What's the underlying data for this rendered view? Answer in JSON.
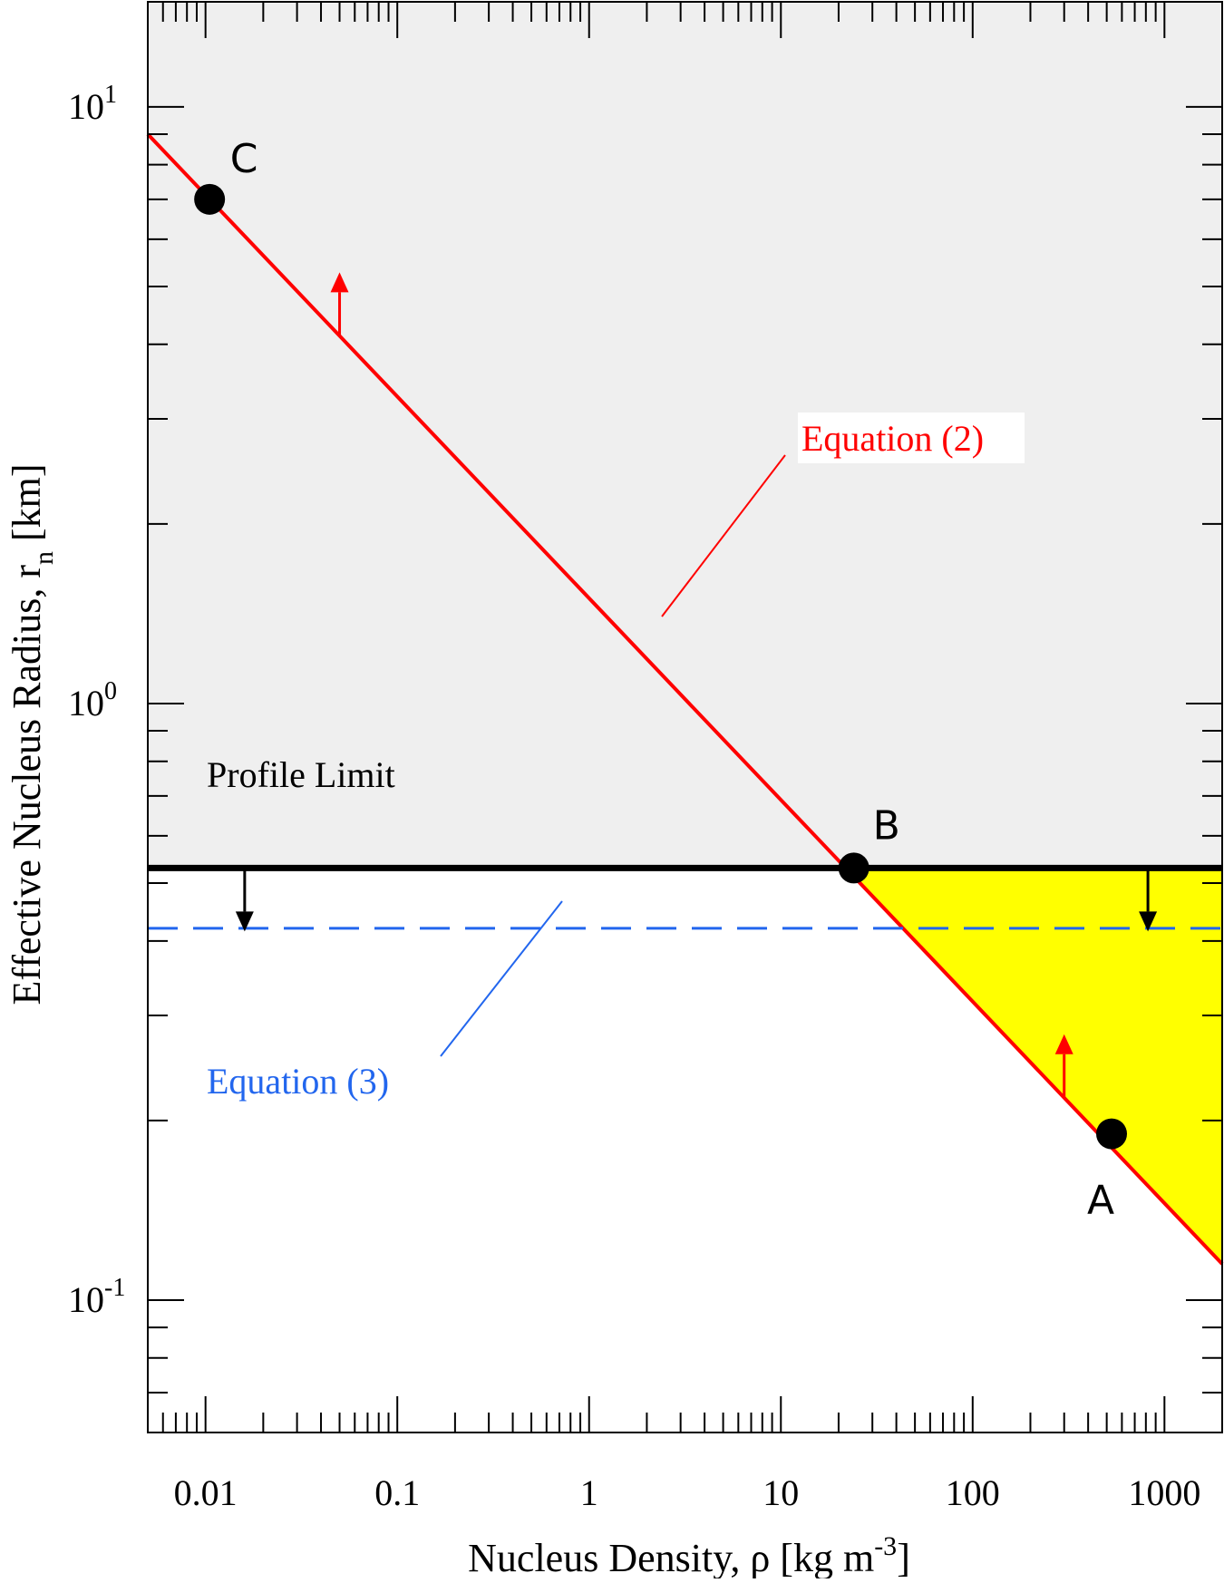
{
  "chart_data": {
    "type": "line",
    "x_scale": "log",
    "y_scale": "log",
    "xlim": [
      0.005,
      2000
    ],
    "ylim": [
      0.06,
      15
    ],
    "xlabel": "Nucleus Density, ρ [kg m",
    "xlabel_sup": "-3",
    "xlabel_end": "]",
    "ylabel": "Effective Nucleus Radius, r",
    "ylabel_sub": "n",
    "ylabel_end": " [km]",
    "x_ticks": [
      {
        "value": 0.01,
        "label": "0.01"
      },
      {
        "value": 0.1,
        "label": "0.1"
      },
      {
        "value": 1,
        "label": "1"
      },
      {
        "value": 10,
        "label": "10"
      },
      {
        "value": 100,
        "label": "100"
      },
      {
        "value": 1000,
        "label": "1000"
      }
    ],
    "y_ticks": [
      {
        "value": 0.1,
        "base": "10",
        "exp": "-1"
      },
      {
        "value": 1,
        "base": "10",
        "exp": "0"
      },
      {
        "value": 10,
        "base": "10",
        "exp": "1"
      }
    ],
    "series": [
      {
        "name": "Equation (2)",
        "color": "#ff0000",
        "style": "solid",
        "x": [
          0.005,
          2000
        ],
        "y": [
          9.0,
          0.115
        ]
      },
      {
        "name": "Profile Limit",
        "color": "#000000",
        "style": "solid-thick",
        "x": [
          0.005,
          2000
        ],
        "y": [
          0.53,
          0.53
        ]
      },
      {
        "name": "Equation (3)",
        "color": "#2266ee",
        "style": "dashed",
        "x": [
          0.005,
          2000
        ],
        "y": [
          0.42,
          0.42
        ]
      }
    ],
    "points": [
      {
        "label": "C",
        "x": 0.0105,
        "y": 7.0
      },
      {
        "label": "B",
        "x": 24,
        "y": 0.53
      },
      {
        "label": "A",
        "x": 530,
        "y": 0.19
      }
    ],
    "shaded_regions": [
      {
        "name": "excluded",
        "color": "#efefef"
      },
      {
        "name": "allowed",
        "color": "#ffff00"
      }
    ],
    "annotations": [
      {
        "text": "Equation (2)",
        "color": "#ff0000"
      },
      {
        "text": "Profile Limit",
        "color": "#000000"
      },
      {
        "text": "Equation (3)",
        "color": "#2266ee"
      }
    ],
    "arrows": [
      {
        "x": 0.05,
        "y": 4.0,
        "direction": "up",
        "color": "#ff0000"
      },
      {
        "x": 300,
        "y": 0.22,
        "direction": "up",
        "color": "#ff0000"
      },
      {
        "x": 0.016,
        "y": 0.53,
        "direction": "down",
        "color": "#000000"
      },
      {
        "x": 820,
        "y": 0.53,
        "direction": "down",
        "color": "#000000"
      }
    ]
  }
}
